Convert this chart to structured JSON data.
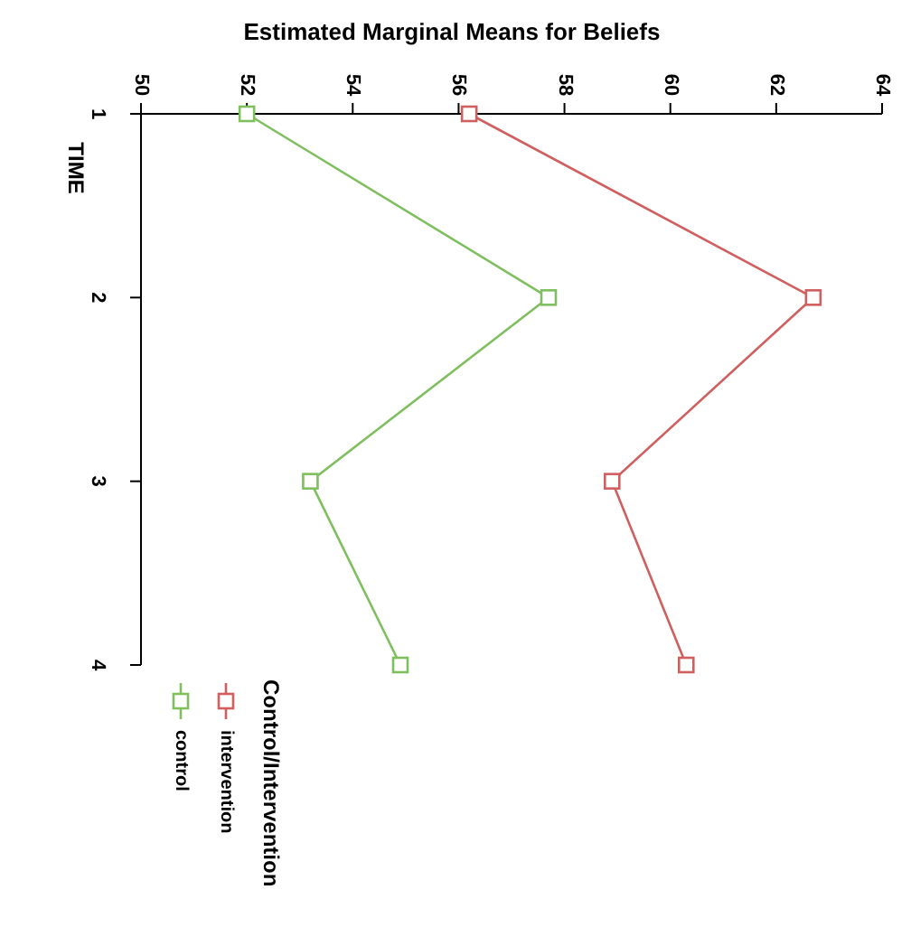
{
  "chart_data": {
    "type": "line",
    "title": "Estimated Marginal Means for Beliefs",
    "ylabel": "TIME",
    "legend_title": "Control/Intervention",
    "xlim": [
      50,
      64
    ],
    "xticks": [
      50,
      52,
      54,
      56,
      58,
      60,
      62,
      64
    ],
    "ylim": [
      4,
      1
    ],
    "yticks": [
      1,
      2,
      3,
      4
    ],
    "marker": "square",
    "grid": false,
    "legend": "bottom left",
    "series": [
      {
        "name": "control",
        "color": "#7fbf5f",
        "x": [
          52.0,
          57.7,
          53.2,
          54.9
        ],
        "values": [
          1,
          2,
          3,
          4
        ]
      },
      {
        "name": "intervention",
        "color": "#d06060",
        "x": [
          56.2,
          62.7,
          58.9,
          60.3
        ],
        "values": [
          1,
          2,
          3,
          4
        ]
      }
    ]
  }
}
